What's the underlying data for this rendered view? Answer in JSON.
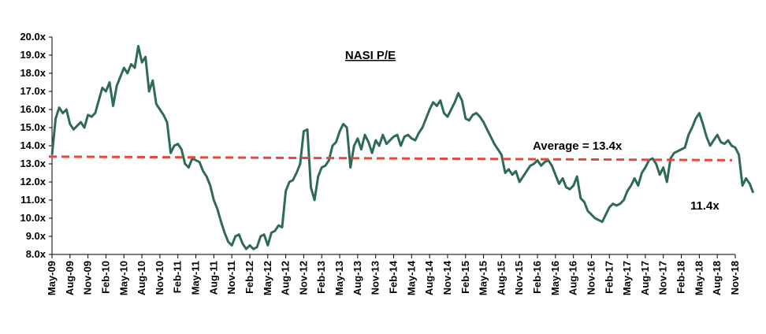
{
  "chart_data": {
    "type": "line",
    "title": "NASI P/E",
    "xlabel": "",
    "ylabel": "",
    "ylim": [
      8.0,
      20.0
    ],
    "y_ticks": [
      "8.0x",
      "9.0x",
      "10.0x",
      "11.0x",
      "12.0x",
      "13.0x",
      "14.0x",
      "15.0x",
      "16.0x",
      "17.0x",
      "18.0x",
      "19.0x",
      "20.0x"
    ],
    "x_ticks": [
      "May-09",
      "Aug-09",
      "Nov-09",
      "Feb-10",
      "May-10",
      "Aug-10",
      "Nov-10",
      "Feb-11",
      "May-11",
      "Aug-11",
      "Nov-11",
      "Feb-12",
      "May-12",
      "Aug-12",
      "Nov-12",
      "Feb-13",
      "May-13",
      "Aug-13",
      "Nov-13",
      "Feb-14",
      "May-14",
      "Aug-14",
      "Nov-14",
      "Feb-15",
      "May-15",
      "Aug-15",
      "Nov-15",
      "Feb-16",
      "May-16",
      "Aug-16",
      "Nov-16",
      "Feb-17",
      "May-17",
      "Aug-17",
      "Nov-17",
      "Feb-18",
      "May-18",
      "Aug-18",
      "Nov-18"
    ],
    "grid": false,
    "legend": "none",
    "colors": {
      "series": "#2e6b57",
      "average": "#e8473a"
    },
    "series": [
      {
        "values": [
          [
            0,
            13.5
          ],
          [
            0.5,
            15.5
          ],
          [
            1,
            16.1
          ],
          [
            1.5,
            15.8
          ],
          [
            2,
            16.0
          ],
          [
            2.5,
            15.2
          ],
          [
            3,
            14.9
          ],
          [
            3.5,
            15.1
          ],
          [
            4,
            15.3
          ],
          [
            4.5,
            15.0
          ],
          [
            5,
            15.7
          ],
          [
            5.5,
            15.6
          ],
          [
            6,
            15.8
          ],
          [
            6.5,
            16.5
          ],
          [
            7,
            17.2
          ],
          [
            7.5,
            17.0
          ],
          [
            8,
            17.5
          ],
          [
            8.5,
            16.2
          ],
          [
            9,
            17.3
          ],
          [
            9.5,
            17.8
          ],
          [
            10,
            18.3
          ],
          [
            10.5,
            18.0
          ],
          [
            11,
            18.5
          ],
          [
            11.5,
            18.3
          ],
          [
            12,
            19.5
          ],
          [
            12.5,
            18.6
          ],
          [
            13,
            18.9
          ],
          [
            13.5,
            17.0
          ],
          [
            14,
            17.6
          ],
          [
            14.5,
            16.3
          ],
          [
            15,
            16.0
          ],
          [
            15.5,
            15.7
          ],
          [
            16,
            15.3
          ],
          [
            16.5,
            13.6
          ],
          [
            17,
            14.0
          ],
          [
            17.5,
            14.1
          ],
          [
            18,
            13.8
          ],
          [
            18.5,
            13.0
          ],
          [
            19,
            12.8
          ],
          [
            19.5,
            13.3
          ],
          [
            20,
            13.2
          ],
          [
            20.5,
            13.1
          ],
          [
            21,
            12.6
          ],
          [
            21.5,
            12.3
          ],
          [
            22,
            11.8
          ],
          [
            22.5,
            11.0
          ],
          [
            23,
            10.5
          ],
          [
            23.5,
            9.8
          ],
          [
            24,
            9.2
          ],
          [
            24.5,
            8.7
          ],
          [
            25,
            8.5
          ],
          [
            25.5,
            9.0
          ],
          [
            26,
            9.1
          ],
          [
            26.5,
            8.6
          ],
          [
            27,
            8.3
          ],
          [
            27.5,
            8.5
          ],
          [
            28,
            8.3
          ],
          [
            28.5,
            8.4
          ],
          [
            29,
            9.0
          ],
          [
            29.5,
            9.1
          ],
          [
            30,
            8.5
          ],
          [
            30.5,
            9.2
          ],
          [
            31,
            9.3
          ],
          [
            31.5,
            9.6
          ],
          [
            32,
            9.5
          ],
          [
            32.5,
            11.5
          ],
          [
            33,
            12.0
          ],
          [
            33.5,
            12.1
          ],
          [
            34,
            12.5
          ],
          [
            34.5,
            13.0
          ],
          [
            35,
            14.8
          ],
          [
            35.5,
            14.9
          ],
          [
            36,
            11.7
          ],
          [
            36.5,
            11.0
          ],
          [
            37,
            12.3
          ],
          [
            37.5,
            12.8
          ],
          [
            38,
            12.9
          ],
          [
            38.5,
            13.2
          ],
          [
            39,
            14.0
          ],
          [
            39.5,
            14.2
          ],
          [
            40,
            14.8
          ],
          [
            40.5,
            15.2
          ],
          [
            41,
            15.0
          ],
          [
            41.5,
            12.8
          ],
          [
            42,
            14.0
          ],
          [
            42.5,
            14.4
          ],
          [
            43,
            13.8
          ],
          [
            43.5,
            14.6
          ],
          [
            44,
            14.2
          ],
          [
            44.5,
            13.6
          ],
          [
            45,
            14.3
          ],
          [
            45.5,
            14.0
          ],
          [
            46,
            14.6
          ],
          [
            46.5,
            14.1
          ],
          [
            47,
            14.3
          ],
          [
            47.5,
            14.5
          ],
          [
            48,
            14.6
          ],
          [
            48.5,
            14.0
          ],
          [
            49,
            14.5
          ],
          [
            49.5,
            14.6
          ],
          [
            50,
            14.4
          ],
          [
            50.5,
            14.3
          ],
          [
            51,
            14.7
          ],
          [
            51.5,
            15.0
          ],
          [
            52,
            15.5
          ],
          [
            52.5,
            16.0
          ],
          [
            53,
            16.4
          ],
          [
            53.5,
            16.2
          ],
          [
            54,
            16.5
          ],
          [
            54.5,
            15.8
          ],
          [
            55,
            15.6
          ],
          [
            55.5,
            16.0
          ],
          [
            56,
            16.4
          ],
          [
            56.5,
            16.9
          ],
          [
            57,
            16.5
          ],
          [
            57.5,
            15.5
          ],
          [
            58,
            15.4
          ],
          [
            58.5,
            15.7
          ],
          [
            59,
            15.8
          ],
          [
            59.5,
            15.6
          ],
          [
            60,
            15.3
          ],
          [
            60.5,
            14.9
          ],
          [
            61,
            14.5
          ],
          [
            61.5,
            14.1
          ],
          [
            62,
            13.8
          ],
          [
            62.5,
            13.5
          ],
          [
            63,
            12.5
          ],
          [
            63.5,
            12.7
          ],
          [
            64,
            12.4
          ],
          [
            64.5,
            12.6
          ],
          [
            65,
            12.0
          ],
          [
            65.5,
            12.3
          ],
          [
            66,
            12.6
          ],
          [
            66.5,
            12.9
          ],
          [
            67,
            13.0
          ],
          [
            67.5,
            13.2
          ],
          [
            68,
            12.9
          ],
          [
            68.5,
            13.1
          ],
          [
            69,
            13.2
          ],
          [
            69.5,
            12.9
          ],
          [
            70,
            12.4
          ],
          [
            70.5,
            11.9
          ],
          [
            71,
            12.2
          ],
          [
            71.5,
            11.7
          ],
          [
            72,
            11.6
          ],
          [
            72.5,
            11.8
          ],
          [
            73,
            12.3
          ],
          [
            73.5,
            11.1
          ],
          [
            74,
            10.9
          ],
          [
            74.5,
            10.4
          ],
          [
            75,
            10.2
          ],
          [
            75.5,
            10.0
          ],
          [
            76,
            9.9
          ],
          [
            76.5,
            9.8
          ],
          [
            77,
            10.2
          ],
          [
            77.5,
            10.6
          ],
          [
            78,
            10.8
          ],
          [
            78.5,
            10.7
          ],
          [
            79,
            10.8
          ],
          [
            79.5,
            11.0
          ],
          [
            80,
            11.5
          ],
          [
            80.5,
            11.8
          ],
          [
            81,
            12.2
          ],
          [
            81.5,
            11.8
          ],
          [
            82,
            12.5
          ],
          [
            82.5,
            12.8
          ],
          [
            83,
            13.2
          ],
          [
            83.5,
            13.3
          ],
          [
            84,
            13.0
          ],
          [
            84.5,
            12.4
          ],
          [
            85,
            12.8
          ],
          [
            85.5,
            12.0
          ],
          [
            86,
            13.3
          ],
          [
            86.5,
            13.6
          ],
          [
            87,
            13.7
          ],
          [
            87.5,
            13.8
          ],
          [
            88,
            13.9
          ],
          [
            88.5,
            14.6
          ],
          [
            89,
            15.0
          ],
          [
            89.5,
            15.5
          ],
          [
            90,
            15.8
          ],
          [
            90.5,
            15.2
          ],
          [
            91,
            14.5
          ],
          [
            91.5,
            14.0
          ],
          [
            92,
            14.3
          ],
          [
            92.5,
            14.6
          ],
          [
            93,
            14.2
          ],
          [
            93.5,
            14.1
          ],
          [
            94,
            14.3
          ],
          [
            94.5,
            14.0
          ],
          [
            95,
            13.9
          ],
          [
            95.5,
            13.5
          ],
          [
            96,
            11.8
          ],
          [
            96.5,
            12.2
          ],
          [
            97,
            11.9
          ],
          [
            97.5,
            11.4
          ]
        ]
      }
    ],
    "average_line": {
      "label": "Average = 13.4x",
      "start": 13.4,
      "end": 13.2
    },
    "callout": "11.4x"
  }
}
